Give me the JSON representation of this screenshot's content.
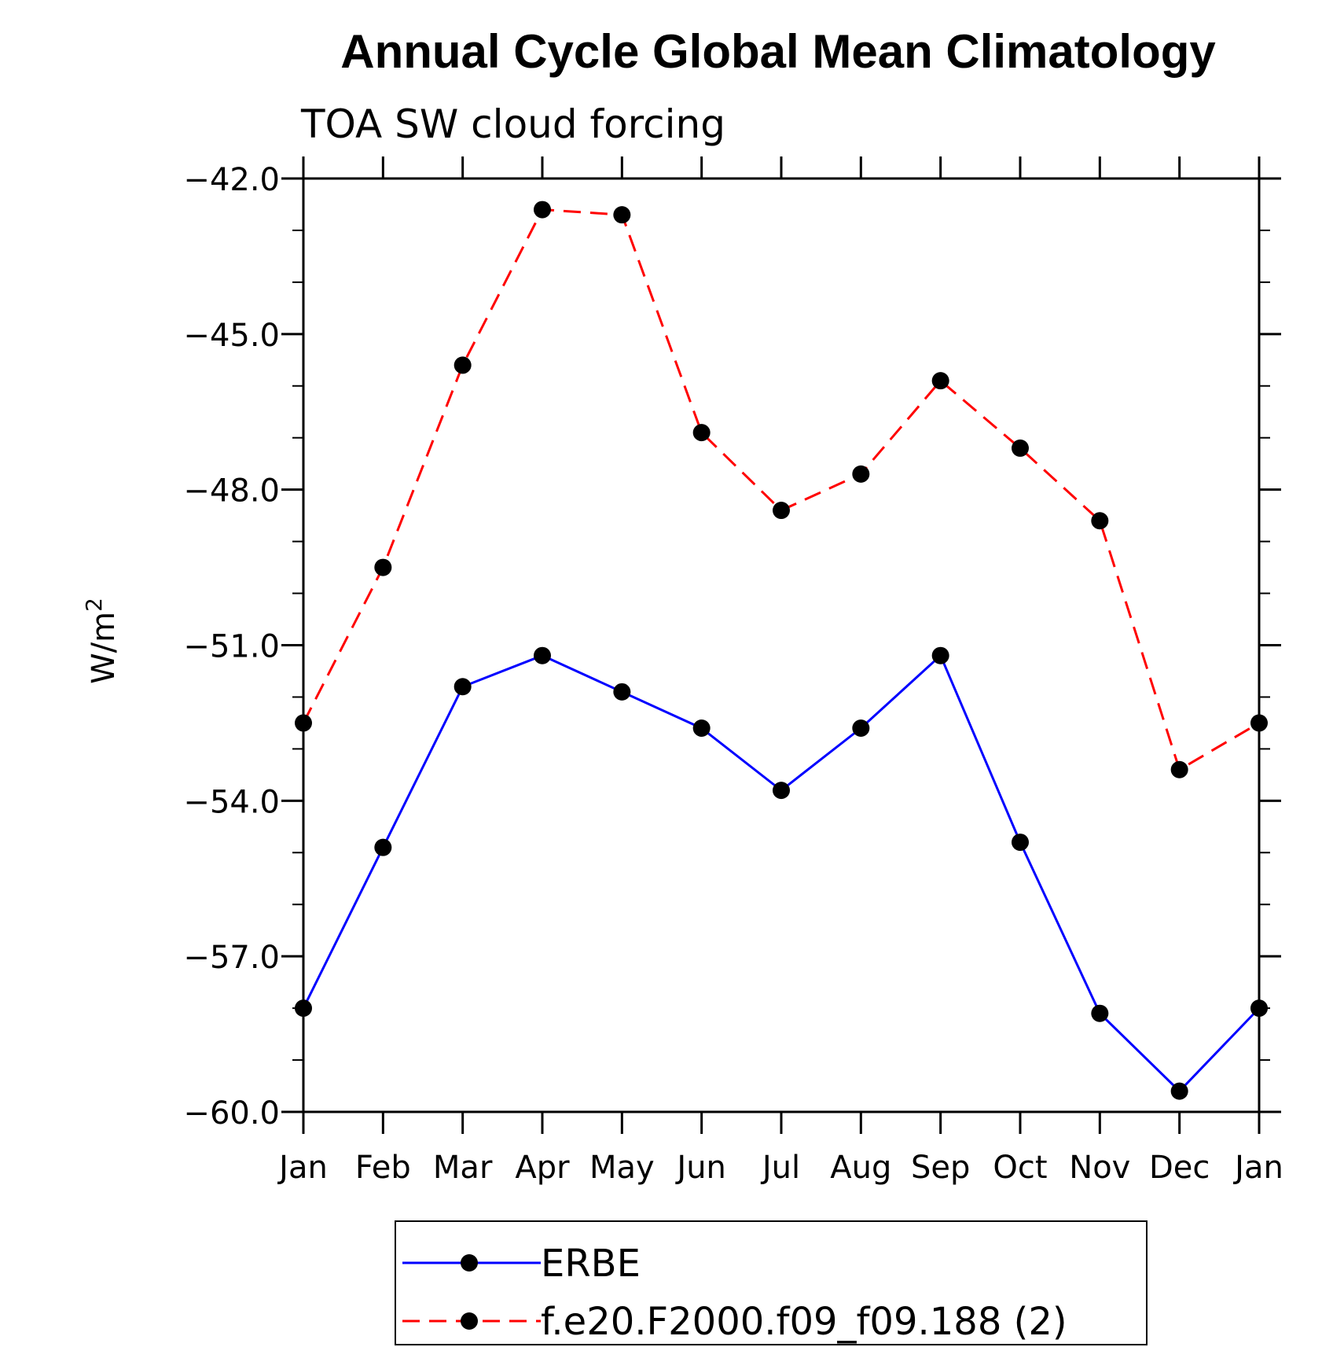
{
  "chart_data": {
    "type": "line",
    "title": "Annual Cycle Global Mean Climatology",
    "subtitle": "TOA SW cloud forcing",
    "xlabel": "",
    "ylabel": "W/m",
    "ylabel_superscript": "2",
    "categories": [
      "Jan",
      "Feb",
      "Mar",
      "Apr",
      "May",
      "Jun",
      "Jul",
      "Aug",
      "Sep",
      "Oct",
      "Nov",
      "Dec",
      "Jan"
    ],
    "ylim": [
      -60.0,
      -42.0
    ],
    "yticks": [
      -42.0,
      -45.0,
      -48.0,
      -51.0,
      -54.0,
      -57.0,
      -60.0
    ],
    "ytick_labels": [
      "−42.0",
      "−45.0",
      "−48.0",
      "−51.0",
      "−54.0",
      "−57.0",
      "−60.0"
    ],
    "grid": false,
    "legend_position": "bottom",
    "series": [
      {
        "name": "ERBE",
        "color": "#0000ff",
        "dash": "solid",
        "marker_color": "#000000",
        "values": [
          -58.0,
          -54.9,
          -51.8,
          -51.2,
          -51.9,
          -52.6,
          -53.8,
          -52.6,
          -51.2,
          -54.8,
          -58.1,
          -59.6,
          -58.0
        ]
      },
      {
        "name": "f.e20.F2000.f09_f09.188 (2)",
        "color": "#ff0000",
        "dash": "dashed",
        "marker_color": "#000000",
        "values": [
          -52.5,
          -49.5,
          -45.6,
          -42.6,
          -42.7,
          -46.9,
          -48.4,
          -47.7,
          -45.9,
          -47.2,
          -48.6,
          -53.4,
          -52.5
        ]
      }
    ]
  }
}
